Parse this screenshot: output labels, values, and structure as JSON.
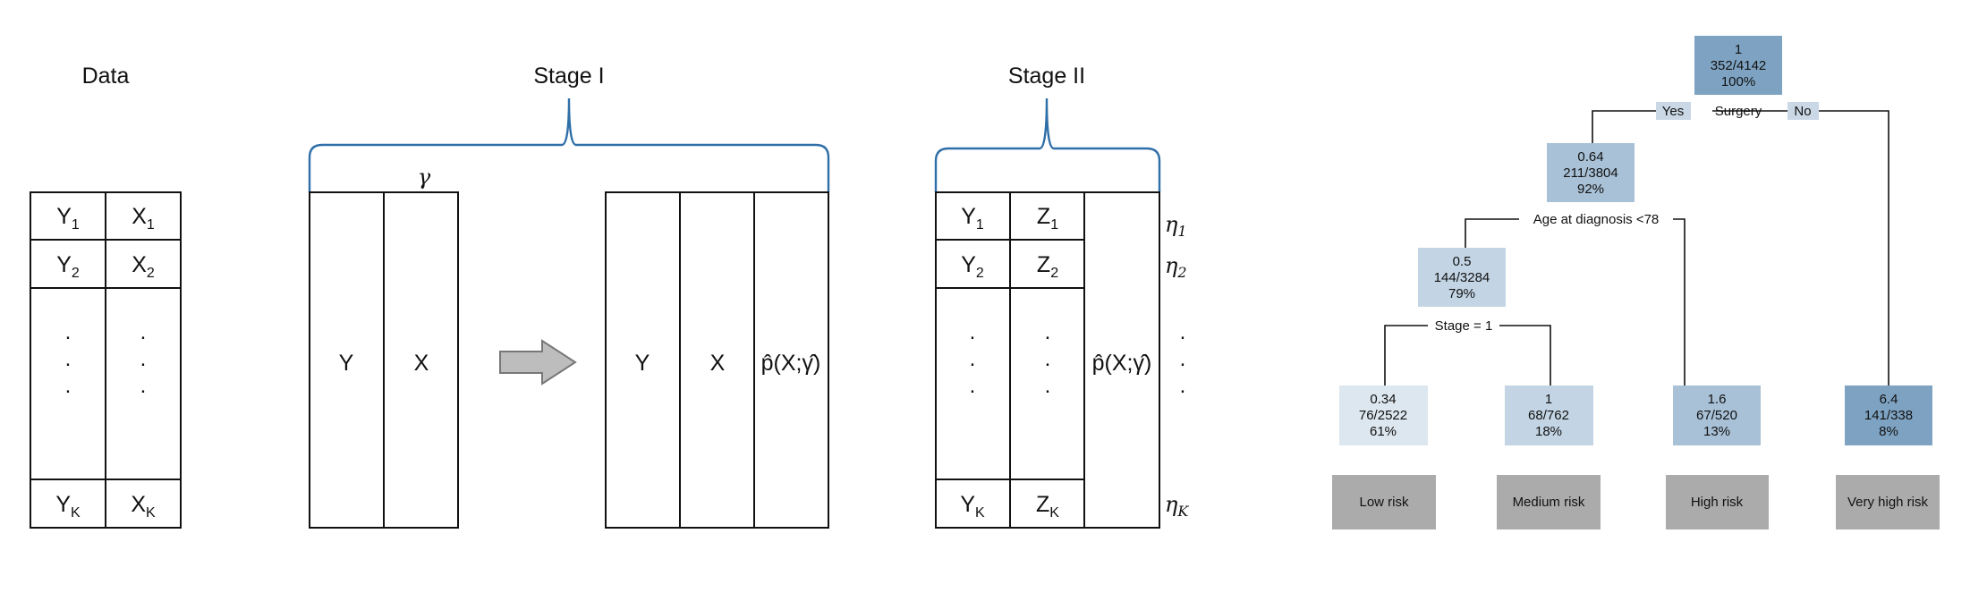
{
  "colors": {
    "brace": "#2f6fa8",
    "arrow_fill": "#bdbdbd",
    "arrow_stroke": "#777777",
    "risk_box": "#ababab",
    "yes_no_label_bg": "#cad8e6"
  },
  "data_panel": {
    "title": "Data",
    "row1": {
      "y": "Y",
      "y_sub": "1",
      "x": "X",
      "x_sub": "1"
    },
    "row2": {
      "y": "Y",
      "y_sub": "2",
      "x": "X",
      "x_sub": "2"
    },
    "rowk": {
      "y": "Y",
      "y_sub": "K",
      "x": "X",
      "x_sub": "K"
    },
    "dot": "."
  },
  "stage1": {
    "title": "Stage I",
    "gamma": "γ",
    "left_cols": [
      "Y",
      "X"
    ],
    "right_cols": [
      "Y",
      "X"
    ],
    "phat": "p̂(X;γ̂)"
  },
  "stage2": {
    "title": "Stage II",
    "row1": {
      "y": "Y",
      "y_sub": "1",
      "z": "Z",
      "z_sub": "1"
    },
    "row2": {
      "y": "Y",
      "y_sub": "2",
      "z": "Z",
      "z_sub": "2"
    },
    "rowk": {
      "y": "Y",
      "y_sub": "K",
      "z": "Z",
      "z_sub": "K"
    },
    "phat": "p̂(X;γ̂)",
    "eta1": {
      "sym": "η",
      "sub": "1"
    },
    "eta2": {
      "sym": "η",
      "sub": "2"
    },
    "etak": {
      "sym": "η",
      "sub": "K"
    },
    "dot": "."
  },
  "tree": {
    "root": {
      "lines": [
        "1",
        "352/4142",
        "100%"
      ],
      "color": "#7ea3c2"
    },
    "split1": {
      "text": "Surgery",
      "yes": "Yes",
      "no": "No"
    },
    "n_left": {
      "lines": [
        "0.64",
        "211/3804",
        "92%"
      ],
      "color": "#a8c1d7"
    },
    "split2": {
      "text": "Age at diagnosis <78"
    },
    "n_ll": {
      "lines": [
        "0.5",
        "144/3284",
        "79%"
      ],
      "color": "#c3d5e4"
    },
    "split3": {
      "text": "Stage = 1"
    },
    "leaves": [
      {
        "lines": [
          "0.34",
          "76/2522",
          "61%"
        ],
        "color": "#dce7ef",
        "risk": "Low risk"
      },
      {
        "lines": [
          "1",
          "68/762",
          "18%"
        ],
        "color": "#c3d5e4",
        "risk": "Medium risk"
      },
      {
        "lines": [
          "1.6",
          "67/520",
          "13%"
        ],
        "color": "#a8c1d7",
        "risk": "High risk"
      },
      {
        "lines": [
          "6.4",
          "141/338",
          "8%"
        ],
        "color": "#7ea3c2",
        "risk": "Very high risk"
      }
    ]
  }
}
